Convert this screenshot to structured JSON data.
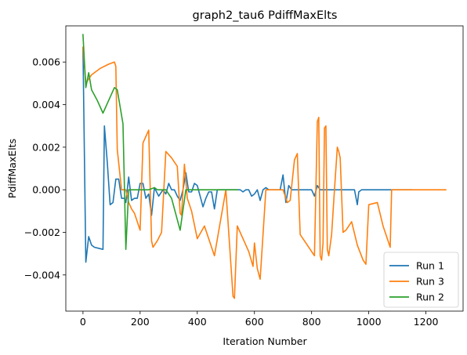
{
  "chart_data": {
    "type": "line",
    "title": "graph2_tau6 PdiffMaxElts",
    "xlabel": "Iteration Number",
    "ylabel": "PdiffMaxElts",
    "xlim": [
      -60,
      1330
    ],
    "ylim": [
      -0.0057,
      0.0077
    ],
    "xticks": [
      0,
      200,
      400,
      600,
      800,
      1000,
      1200
    ],
    "xtick_labels": [
      "0",
      "200",
      "400",
      "600",
      "800",
      "1000",
      "1200"
    ],
    "yticks": [
      -0.004,
      -0.002,
      0.0,
      0.002,
      0.004,
      0.006
    ],
    "ytick_labels": [
      "−0.004",
      "−0.002",
      "0.000",
      "0.002",
      "0.004",
      "0.006"
    ],
    "grid": false,
    "legend": "lower-right",
    "series": [
      {
        "name": "Run 1",
        "color": "#1f77b4",
        "x": [
          0,
          10,
          20,
          30,
          40,
          70,
          75,
          85,
          95,
          105,
          115,
          125,
          135,
          145,
          150,
          160,
          170,
          180,
          190,
          200,
          210,
          220,
          230,
          240,
          250,
          265,
          280,
          290,
          300,
          310,
          320,
          330,
          340,
          350,
          360,
          370,
          380,
          390,
          400,
          410,
          420,
          430,
          440,
          450,
          460,
          470,
          480,
          490,
          500,
          510,
          520,
          530,
          540,
          550,
          560,
          570,
          580,
          590,
          600,
          610,
          620,
          630,
          640,
          650,
          660,
          670,
          680,
          690,
          700,
          710,
          720,
          730,
          740,
          750,
          760,
          770,
          800,
          810,
          820,
          830,
          840,
          850,
          860,
          870,
          880,
          900,
          950,
          960,
          965,
          975,
          985,
          1000,
          1050,
          1100,
          1150
        ],
        "y": [
          0.0067,
          -0.0034,
          -0.0022,
          -0.0026,
          -0.0027,
          -0.0028,
          0.003,
          0.0013,
          -0.0007,
          -0.0006,
          0.0005,
          0.0005,
          -0.0004,
          -0.0004,
          -0.0006,
          0.0006,
          -0.0005,
          -0.0004,
          -0.0004,
          0.0003,
          0.0003,
          -0.0004,
          -0.0002,
          -0.0012,
          0.0001,
          -0.0003,
          0.0,
          -0.0002,
          0.0003,
          0.0,
          0.0,
          -0.0003,
          -0.0005,
          0.0,
          0.0008,
          -0.0001,
          -0.0001,
          0.0003,
          0.0002,
          -0.0003,
          -0.0008,
          -0.0004,
          -0.0001,
          -0.0001,
          -0.0009,
          0.0,
          0.0,
          0.0,
          0.0,
          0.0,
          0.0,
          0.0,
          0.0,
          0.0,
          -0.0001,
          0.0,
          0.0,
          -0.0003,
          -0.0002,
          0.0,
          -0.0005,
          0.0,
          0.0001,
          0.0,
          0.0,
          0.0,
          0.0,
          0.0,
          0.0007,
          -0.0006,
          0.0002,
          0.0,
          0.0,
          0.0,
          0.0,
          0.0,
          0.0,
          -0.0003,
          0.0002,
          0.0,
          0.0,
          0.0,
          0.0,
          0.0,
          0.0,
          0.0,
          0.0,
          -0.0007,
          -0.0001,
          0.0,
          0.0,
          0.0,
          0.0,
          0.0,
          0.0
        ]
      },
      {
        "name": "Run 3",
        "color": "#ff7f0e",
        "x": [
          0,
          10,
          30,
          60,
          90,
          110,
          115,
          120,
          135,
          150,
          160,
          170,
          180,
          190,
          200,
          210,
          220,
          230,
          240,
          245,
          260,
          275,
          290,
          310,
          330,
          340,
          345,
          355,
          365,
          380,
          400,
          425,
          460,
          500,
          525,
          530,
          540,
          580,
          595,
          600,
          610,
          620,
          640,
          660,
          680,
          700,
          715,
          725,
          740,
          750,
          760,
          770,
          780,
          800,
          810,
          820,
          825,
          830,
          835,
          840,
          845,
          850,
          855,
          860,
          870,
          880,
          890,
          895,
          900,
          910,
          920,
          940,
          960,
          980,
          990,
          1000,
          1030,
          1050,
          1075,
          1080,
          1090,
          1100,
          1120,
          1140,
          1160,
          1180,
          1200,
          1220,
          1240,
          1270
        ],
        "y": [
          0.0067,
          0.005,
          0.0054,
          0.0057,
          0.0059,
          0.006,
          0.0058,
          0.0019,
          0.0,
          0.0,
          -0.0006,
          -0.0009,
          -0.0011,
          -0.0015,
          -0.0019,
          0.0022,
          0.0025,
          0.0028,
          -0.0024,
          -0.0027,
          -0.0024,
          -0.002,
          0.0018,
          0.0015,
          0.0011,
          -0.0011,
          -0.0012,
          0.0012,
          -0.0004,
          -0.001,
          -0.0023,
          -0.0017,
          -0.0031,
          0.0,
          -0.005,
          -0.0051,
          -0.0017,
          -0.0029,
          -0.0036,
          -0.0025,
          -0.0037,
          -0.0042,
          0.0,
          0.0,
          0.0,
          0.0,
          -0.0006,
          -0.0005,
          0.0014,
          0.0017,
          -0.0021,
          -0.0023,
          -0.0025,
          -0.0029,
          -0.0031,
          0.0032,
          0.0034,
          -0.0031,
          -0.0033,
          -0.0025,
          0.0029,
          0.003,
          -0.0028,
          -0.0031,
          -0.0021,
          0.0,
          0.002,
          0.0018,
          0.0015,
          -0.002,
          -0.0019,
          -0.0015,
          -0.0026,
          -0.0033,
          -0.0035,
          -0.0007,
          -0.0006,
          -0.0017,
          -0.0027,
          0.0,
          0.0,
          0.0,
          0.0,
          0.0,
          0.0,
          0.0,
          0.0,
          0.0,
          0.0,
          0.0
        ]
      },
      {
        "name": "Run 2",
        "color": "#2ca02c",
        "x": [
          0,
          10,
          20,
          30,
          50,
          70,
          90,
          110,
          120,
          130,
          140,
          150,
          160,
          170,
          180,
          190,
          210,
          230,
          250,
          260,
          270,
          280,
          290,
          310,
          340,
          360,
          380,
          400,
          420,
          440,
          460,
          480,
          500,
          520,
          540
        ],
        "y": [
          0.0073,
          0.0048,
          0.0055,
          0.0047,
          0.0042,
          0.0036,
          0.0042,
          0.0048,
          0.0047,
          0.0039,
          0.0031,
          -0.0028,
          0.0,
          0.0,
          0.0,
          0.0,
          0.0,
          0.0,
          0.0001,
          0.0,
          0.0,
          0.0,
          0.0,
          -0.0004,
          -0.0019,
          0.0,
          0.0,
          0.0,
          0.0,
          0.0,
          0.0,
          0.0,
          0.0,
          0.0,
          0.0
        ]
      }
    ]
  }
}
